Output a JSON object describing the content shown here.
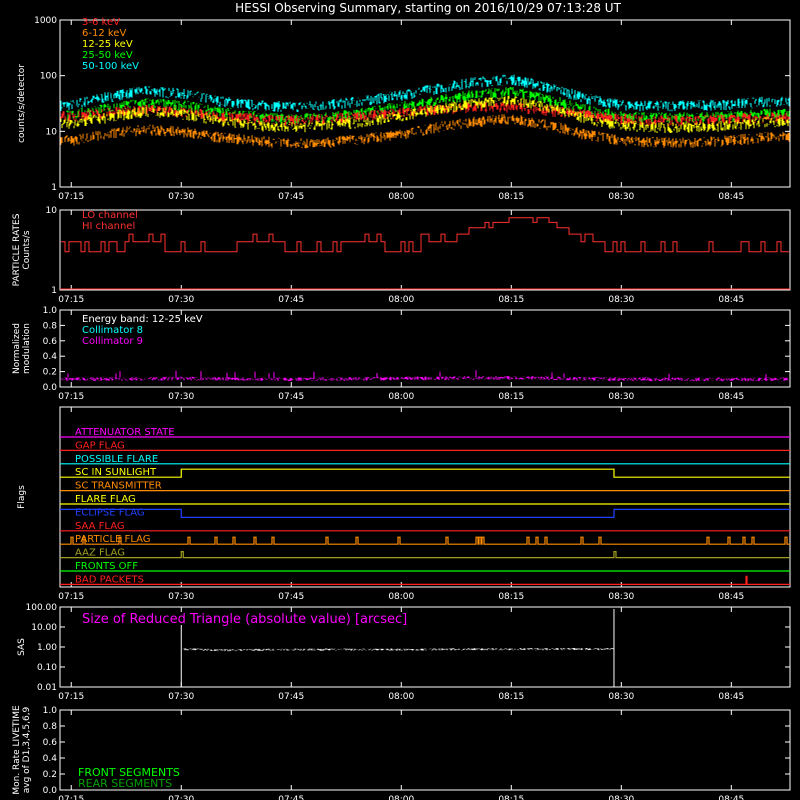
{
  "title": "HESSI Observing Summary, starting on 2016/10/29 07:13:28 UT",
  "time_axis": {
    "start": "07:13:28",
    "end": "08:53:00",
    "ticks": [
      "07:15",
      "07:30",
      "07:45",
      "08:00",
      "08:15",
      "08:30",
      "08:45"
    ]
  },
  "chart_data": [
    {
      "type": "line",
      "id": "count-rates",
      "ylabel": "counts/s/detector",
      "yscale": "log",
      "ylim": [
        1,
        1000
      ],
      "yticks": [
        "1",
        "10",
        "100",
        "1000"
      ],
      "series": [
        {
          "name": "3-6 keV",
          "color": "#ff2020"
        },
        {
          "name": "6-12 keV",
          "color": "#ff8c00"
        },
        {
          "name": "12-25 keV",
          "color": "#ffff00"
        },
        {
          "name": "25-50 keV",
          "color": "#00ff00"
        },
        {
          "name": "50-100 keV",
          "color": "#00ffff"
        }
      ],
      "x": [
        "07:15",
        "07:20",
        "07:25",
        "07:30",
        "07:35",
        "07:40",
        "07:45",
        "07:50",
        "07:55",
        "08:00",
        "08:05",
        "08:10",
        "08:15",
        "08:20",
        "08:25",
        "08:30",
        "08:35",
        "08:40",
        "08:45",
        "08:50"
      ],
      "values": {
        "50-100 keV": [
          30,
          42,
          55,
          48,
          36,
          30,
          28,
          30,
          36,
          45,
          60,
          78,
          88,
          62,
          40,
          30,
          29,
          30,
          31,
          35
        ],
        "25-50 keV": [
          20,
          26,
          33,
          30,
          23,
          19,
          17,
          18,
          22,
          28,
          36,
          46,
          52,
          38,
          25,
          19,
          18,
          18,
          19,
          21
        ],
        "3-6 keV": [
          19,
          22,
          25,
          23,
          19,
          17,
          16,
          17,
          19,
          22,
          25,
          28,
          28,
          24,
          20,
          17,
          16,
          16,
          17,
          18
        ],
        "12-25 keV": [
          14,
          18,
          23,
          21,
          16,
          13,
          12,
          13,
          15,
          19,
          25,
          32,
          36,
          27,
          17,
          13,
          12,
          12,
          13,
          15
        ],
        "6-12 keV": [
          7,
          9,
          11,
          10,
          8,
          7,
          6,
          6.5,
          7.5,
          9,
          12,
          15,
          17,
          13,
          9,
          7,
          6.5,
          6.5,
          7,
          8
        ]
      }
    },
    {
      "type": "line",
      "id": "particle-rates",
      "ylabel": "PARTICLE RATES Counts/s",
      "yscale": "log",
      "ylim": [
        1,
        10
      ],
      "yticks": [
        "1",
        "10"
      ],
      "series": [
        {
          "name": "LO channel",
          "color": "#ff3030"
        },
        {
          "name": "HI channel",
          "color": "#ff3030"
        }
      ],
      "x": [
        "07:15",
        "07:20",
        "07:25",
        "07:30",
        "07:35",
        "07:40",
        "07:45",
        "07:50",
        "07:55",
        "08:00",
        "08:05",
        "08:10",
        "08:15",
        "08:20",
        "08:25",
        "08:30",
        "08:35",
        "08:40",
        "08:45",
        "08:50"
      ],
      "values": {
        "LO channel": [
          3,
          3,
          4,
          3,
          3,
          4,
          3,
          3,
          4,
          3,
          4,
          5,
          8,
          7,
          4,
          3,
          3,
          3,
          3,
          3
        ],
        "HI channel": [
          1,
          1,
          1,
          1,
          1,
          1,
          1,
          1,
          1,
          1,
          1,
          1,
          1,
          1,
          1,
          1,
          1,
          1,
          1,
          1
        ]
      }
    },
    {
      "type": "line",
      "id": "modulation",
      "ylabel": "Normalized modulation",
      "ylim": [
        0,
        1.0
      ],
      "yticks": [
        "0.0",
        "0.2",
        "0.4",
        "0.6",
        "0.8",
        "1.0"
      ],
      "annotation": "Energy band: 12-25 keV",
      "series": [
        {
          "name": "Collimator 8",
          "color": "#00ffff"
        },
        {
          "name": "Collimator 9",
          "color": "#ff00ff"
        }
      ],
      "x": [
        "07:15",
        "07:30",
        "07:45",
        "08:00",
        "08:15",
        "08:30",
        "08:45",
        "08:50"
      ],
      "values": {
        "Collimator 9": [
          0.1,
          0.11,
          0.1,
          0.11,
          0.12,
          0.1,
          0.1,
          0.1
        ]
      }
    },
    {
      "type": "line",
      "id": "flags",
      "ylabel": "Flags",
      "flags": [
        {
          "name": "ATTENUATOR STATE",
          "color": "#ff00ff",
          "state": "off"
        },
        {
          "name": "GAP FLAG",
          "color": "#ff2020",
          "state": "off"
        },
        {
          "name": "POSSIBLE FLARE",
          "color": "#00ffff",
          "state": "off"
        },
        {
          "name": "SC IN SUNLIGHT",
          "color": "#ffff00",
          "on_from": "07:30",
          "on_to": "08:29"
        },
        {
          "name": "SC TRANSMITTER",
          "color": "#ff8c00",
          "state": "off"
        },
        {
          "name": "FLARE FLAG",
          "color": "#ffff00",
          "state": "off"
        },
        {
          "name": "ECLIPSE FLAG",
          "color": "#2040ff",
          "on_from": "07:13:28",
          "on_to": "07:30",
          "on_again_from": "08:29"
        },
        {
          "name": "SAA FLAG",
          "color": "#ff2020",
          "state": "off"
        },
        {
          "name": "PARTICLE FLAG",
          "color": "#ff8c00",
          "state": "intermittent"
        },
        {
          "name": "AAZ FLAG",
          "color": "#a0a020",
          "state": "brief spikes at 07:30 and 08:29"
        },
        {
          "name": "FRONTS OFF",
          "color": "#00ff00",
          "state": "off"
        },
        {
          "name": "BAD PACKETS",
          "color": "#ff2020",
          "state": "spike near 08:47"
        }
      ]
    },
    {
      "type": "line",
      "id": "sas",
      "ylabel": "SAS",
      "yscale": "log",
      "ylim": [
        0.01,
        100
      ],
      "yticks": [
        "0.01",
        "0.10",
        "1.00",
        "10.00",
        "100.00"
      ],
      "annotation": "Size of Reduced Triangle (absolute value) [arcsec]",
      "series": [
        {
          "name": "Size of Reduced Triangle",
          "color": "#ffffff"
        }
      ],
      "x": [
        "07:30",
        "07:35",
        "07:45",
        "08:00",
        "08:15",
        "08:28"
      ],
      "values": {
        "Size of Reduced Triangle": [
          0.8,
          0.7,
          0.75,
          0.75,
          0.78,
          0.8
        ]
      }
    },
    {
      "type": "line",
      "id": "livetime",
      "ylabel": "Mon. Rate LIVETIME avg of D1,3,4,5,6,9",
      "ylim": [
        0,
        1.0
      ],
      "yticks": [
        "0.0",
        "0.2",
        "0.4",
        "0.6",
        "0.8",
        "1.0"
      ],
      "series": [
        {
          "name": "FRONT SEGMENTS",
          "color": "#00ff00"
        },
        {
          "name": "REAR SEGMENTS",
          "color": "#00a000"
        }
      ]
    }
  ]
}
